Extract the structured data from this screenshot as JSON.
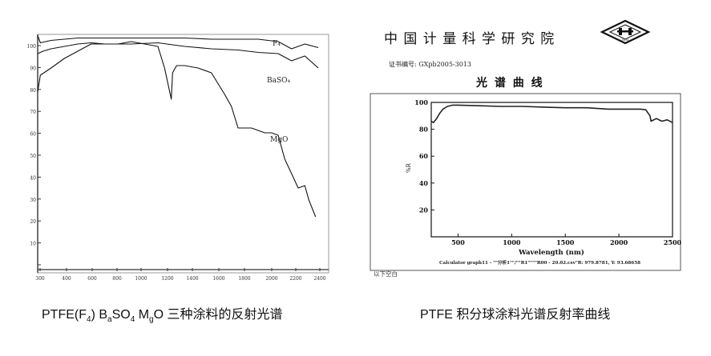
{
  "left_figure": {
    "y_ticks": [
      "100",
      "90",
      "80",
      "70",
      "60",
      "50",
      "40",
      "30",
      "20",
      "10",
      ""
    ],
    "x_ticks": [
      "300",
      "400",
      "600",
      "800",
      "1000",
      "1200",
      "1400",
      "1600",
      "1800",
      "2000",
      "2200",
      "2400"
    ],
    "caption": {
      "prefix": "PTFE(F",
      "f_sub": "4",
      "mid1": ")   B",
      "b_sub": "a",
      "mid2": "SO",
      "so_sub": "4",
      "mid3": "    M",
      "m_sub": "g",
      "suffix": "O 三种涂料的反射光谱"
    },
    "labels": {
      "f4": "F₄",
      "baso4": "BaSO₄",
      "mgo": "MgO"
    }
  },
  "right_figure": {
    "org": "中 国 计 量 科 学 研 究 院",
    "cert": "证书编号: GXpb2005-3013",
    "title": "光 谱 曲 线",
    "logo_text": "NIM",
    "y_ticks": [
      "100",
      "80",
      "60",
      "40",
      "20"
    ],
    "x_ticks": [
      "500",
      "1000",
      "1500",
      "2000",
      "2500"
    ],
    "xlabel": "Wavelength (nm)",
    "ylabel": "%R",
    "footer": "Calculator graph11 - \"\"分析1\"\"/\"\"R1\"\"\"\"R00 - 20.02.csv\"R: 979.8781, Y: 93.68658",
    "below": "以下空白",
    "caption": "PTFE 积分球涂料光谱反射率曲线"
  },
  "chart_data": [
    {
      "type": "line",
      "title": "",
      "xlabel": "",
      "ylabel": "",
      "xlim": [
        300,
        2400
      ],
      "ylim": [
        0,
        100
      ],
      "series": [
        {
          "name": "F₄",
          "color": "#111111",
          "x": [
            300,
            320,
            400,
            500,
            600,
            800,
            1000,
            1200,
            1400,
            1600,
            1800,
            1950,
            2100,
            2200,
            2300,
            2400
          ],
          "y": [
            99.5,
            96.5,
            97.5,
            98.0,
            98.5,
            98.5,
            98.5,
            98.5,
            98.5,
            98.0,
            98.0,
            98.0,
            97.0,
            94.0,
            96.0,
            94.5
          ]
        },
        {
          "name": "BaSO₄",
          "color": "#111111",
          "x": [
            300,
            340,
            400,
            500,
            600,
            700,
            800,
            1000,
            1200,
            1400,
            1600,
            1800,
            1950,
            2100,
            2200,
            2300,
            2400
          ],
          "y": [
            92.0,
            93.0,
            94.0,
            95.0,
            96.0,
            96.5,
            96.0,
            96.0,
            96.5,
            95.0,
            94.0,
            93.5,
            92.5,
            92.0,
            89.0,
            91.0,
            86.0
          ]
        },
        {
          "name": "MgO",
          "color": "#111111",
          "x": [
            300,
            320,
            400,
            500,
            600,
            700,
            800,
            900,
            1000,
            1100,
            1200,
            1250,
            1300,
            1310,
            1340,
            1400,
            1500,
            1600,
            1700,
            1750,
            1800,
            1900,
            2000,
            2050,
            2100,
            2150,
            2200,
            2250,
            2300,
            2330,
            2380
          ],
          "y": [
            76,
            83,
            86,
            90,
            93,
            96,
            96,
            96,
            97,
            96,
            95,
            86,
            73,
            84,
            87,
            87,
            86,
            84,
            75,
            70,
            61,
            61,
            59,
            59,
            58,
            48,
            42,
            36,
            37,
            31,
            24
          ]
        }
      ]
    },
    {
      "type": "line",
      "title": "光 谱 曲 线",
      "xlabel": "Wavelength (nm)",
      "ylabel": "%R",
      "xlim": [
        250,
        2500
      ],
      "ylim": [
        0,
        100
      ],
      "series": [
        {
          "color": "#222222",
          "x": [
            250,
            270,
            300,
            330,
            360,
            400,
            450,
            500,
            700,
            900,
            1100,
            1300,
            1500,
            1700,
            1900,
            2100,
            2200,
            2250,
            2290,
            2300,
            2350,
            2400,
            2450,
            2500
          ],
          "y": [
            86,
            85,
            88,
            92,
            95,
            97,
            98,
            98,
            97.5,
            97,
            97,
            96.5,
            96,
            96,
            95,
            95,
            95,
            94.5,
            90,
            86,
            88,
            86,
            87,
            85
          ]
        }
      ]
    }
  ]
}
